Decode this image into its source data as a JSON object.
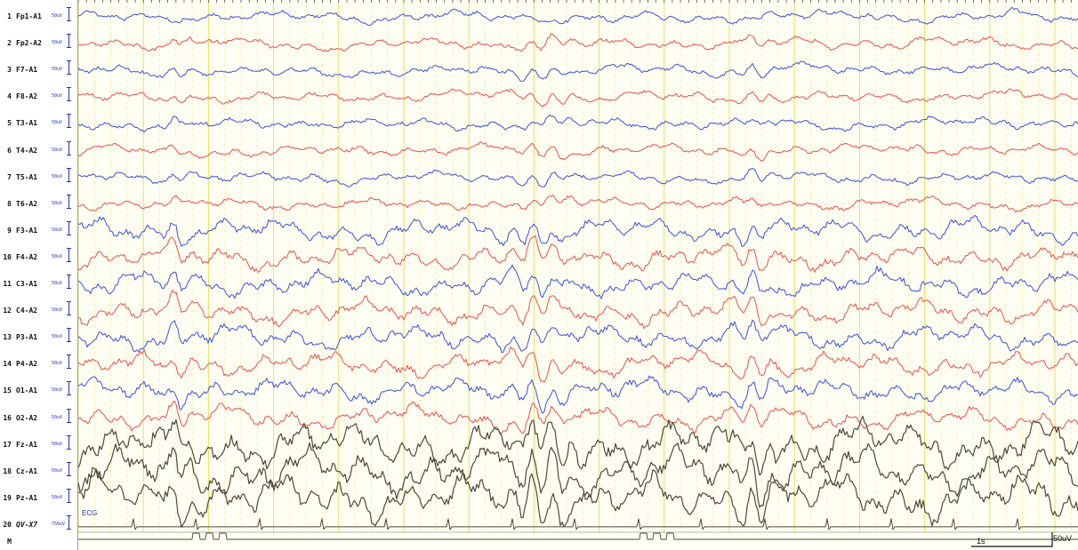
{
  "chart_data": {
    "type": "line",
    "title": "",
    "xlabel": "",
    "ylabel": "",
    "grid": true,
    "channels": [
      {
        "num": "1",
        "label": "Fp1-A1",
        "scale": "50uV",
        "color": "#3a4fe0",
        "group": "ref"
      },
      {
        "num": "2",
        "label": "Fp2-A2",
        "scale": "50uV",
        "color": "#e8504a",
        "group": "ref"
      },
      {
        "num": "3",
        "label": "F7-A1",
        "scale": "50uV",
        "color": "#3a4fe0",
        "group": "ref"
      },
      {
        "num": "4",
        "label": "F8-A2",
        "scale": "50uV",
        "color": "#e8504a",
        "group": "ref"
      },
      {
        "num": "5",
        "label": "T3-A1",
        "scale": "50uV",
        "color": "#3a4fe0",
        "group": "ref"
      },
      {
        "num": "6",
        "label": "T4-A2",
        "scale": "50uV",
        "color": "#e8504a",
        "group": "ref"
      },
      {
        "num": "7",
        "label": "T5-A1",
        "scale": "50uV",
        "color": "#3a4fe0",
        "group": "ref"
      },
      {
        "num": "8",
        "label": "T6-A2",
        "scale": "50uV",
        "color": "#e8504a",
        "group": "ref"
      },
      {
        "num": "9",
        "label": "F3-A1",
        "scale": "50uV",
        "color": "#3a4fe0",
        "group": "ref"
      },
      {
        "num": "10",
        "label": "F4-A2",
        "scale": "50uV",
        "color": "#e8504a",
        "group": "ref"
      },
      {
        "num": "11",
        "label": "C3-A1",
        "scale": "50uV",
        "color": "#3a4fe0",
        "group": "ref"
      },
      {
        "num": "12",
        "label": "C4-A2",
        "scale": "50uV",
        "color": "#e8504a",
        "group": "ref"
      },
      {
        "num": "13",
        "label": "P3-A1",
        "scale": "50uV",
        "color": "#3a4fe0",
        "group": "ref"
      },
      {
        "num": "14",
        "label": "P4-A2",
        "scale": "50uV",
        "color": "#e8504a",
        "group": "ref"
      },
      {
        "num": "15",
        "label": "O1-A1",
        "scale": "50uV",
        "color": "#3a4fe0",
        "group": "ref"
      },
      {
        "num": "16",
        "label": "O2-A2",
        "scale": "50uV",
        "color": "#e8504a",
        "group": "ref"
      },
      {
        "num": "17",
        "label": "Fz-A1",
        "scale": "50uV",
        "color": "#4a4a3a",
        "group": "mid"
      },
      {
        "num": "18",
        "label": "Cz-A1",
        "scale": "50uV",
        "color": "#4a4a3a",
        "group": "mid"
      },
      {
        "num": "19",
        "label": "Pz-A1",
        "scale": "50uV",
        "color": "#4a4a3a",
        "group": "mid"
      },
      {
        "num": "20",
        "label": "QV-X7",
        "scale": "750uV",
        "color": "#4a4a3a",
        "group": "ecg"
      },
      {
        "num": "M",
        "label": "",
        "scale": "",
        "color": "#4a4a3a",
        "group": "marker"
      }
    ],
    "ecg_label": "ECG",
    "time_scale_label": "1s",
    "amplitude_scale_label": "50uV",
    "duration_s": 10,
    "marker_bursts_s": [
      1.4,
      6.9,
      12.8
    ]
  },
  "colors": {
    "background": "#fffef2",
    "grid_major": "#e8e060",
    "grid_minor": "#f2eca0",
    "left_accent": "#2030c0"
  }
}
